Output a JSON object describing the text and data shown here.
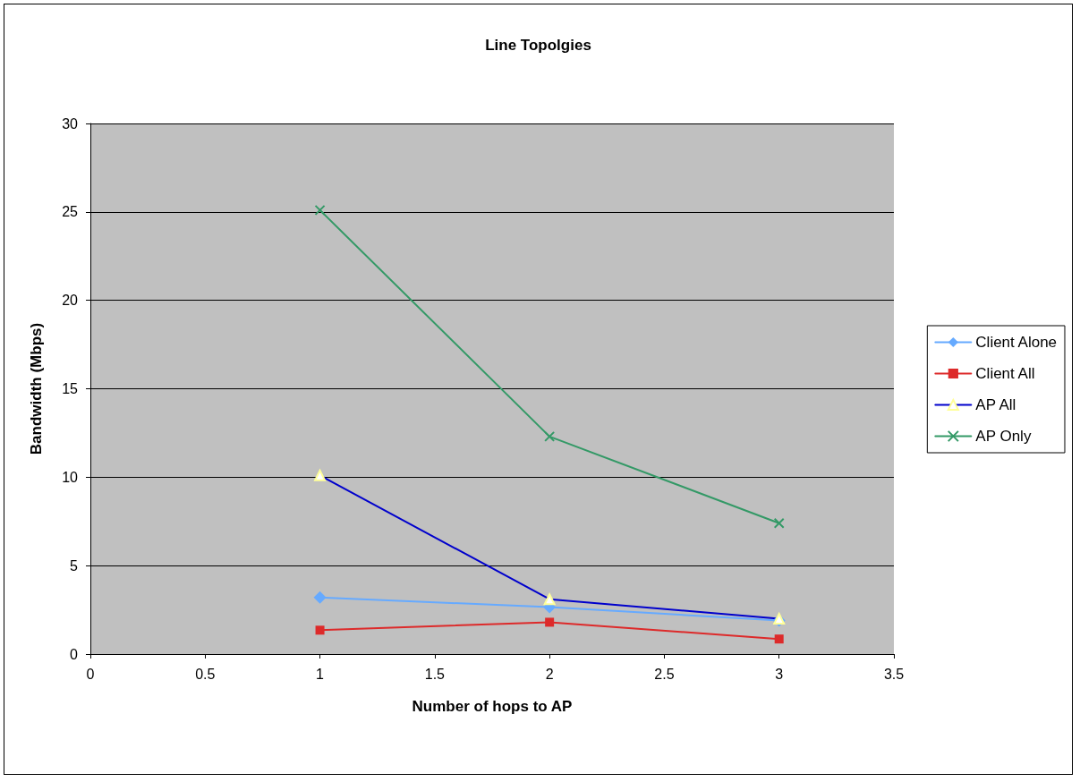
{
  "chart_data": {
    "type": "line",
    "title": "Line Topolgies",
    "xlabel": "Number of hops to AP",
    "ylabel": "Bandwidth (Mbps)",
    "x": [
      1,
      2,
      3
    ],
    "xlim": [
      0,
      3.5
    ],
    "xticks": [
      0,
      0.5,
      1,
      1.5,
      2,
      2.5,
      3,
      3.5
    ],
    "ylim": [
      0,
      30
    ],
    "yticks": [
      0,
      5,
      10,
      15,
      20,
      25,
      30
    ],
    "grid": "y",
    "legend": "right",
    "series": [
      {
        "name": "Client Alone",
        "color": "#66aaff",
        "marker": "diamond",
        "values": [
          3.2,
          2.65,
          1.9
        ]
      },
      {
        "name": "Client All",
        "color": "#dd2a2a",
        "marker": "square",
        "values": [
          1.35,
          1.8,
          0.85
        ]
      },
      {
        "name": "AP All",
        "color": "#0000cc",
        "marker": "triangle",
        "values": [
          10.1,
          3.1,
          2.0
        ]
      },
      {
        "name": "AP Only",
        "color": "#339966",
        "marker": "cross",
        "values": [
          25.1,
          12.3,
          7.4
        ]
      }
    ]
  }
}
